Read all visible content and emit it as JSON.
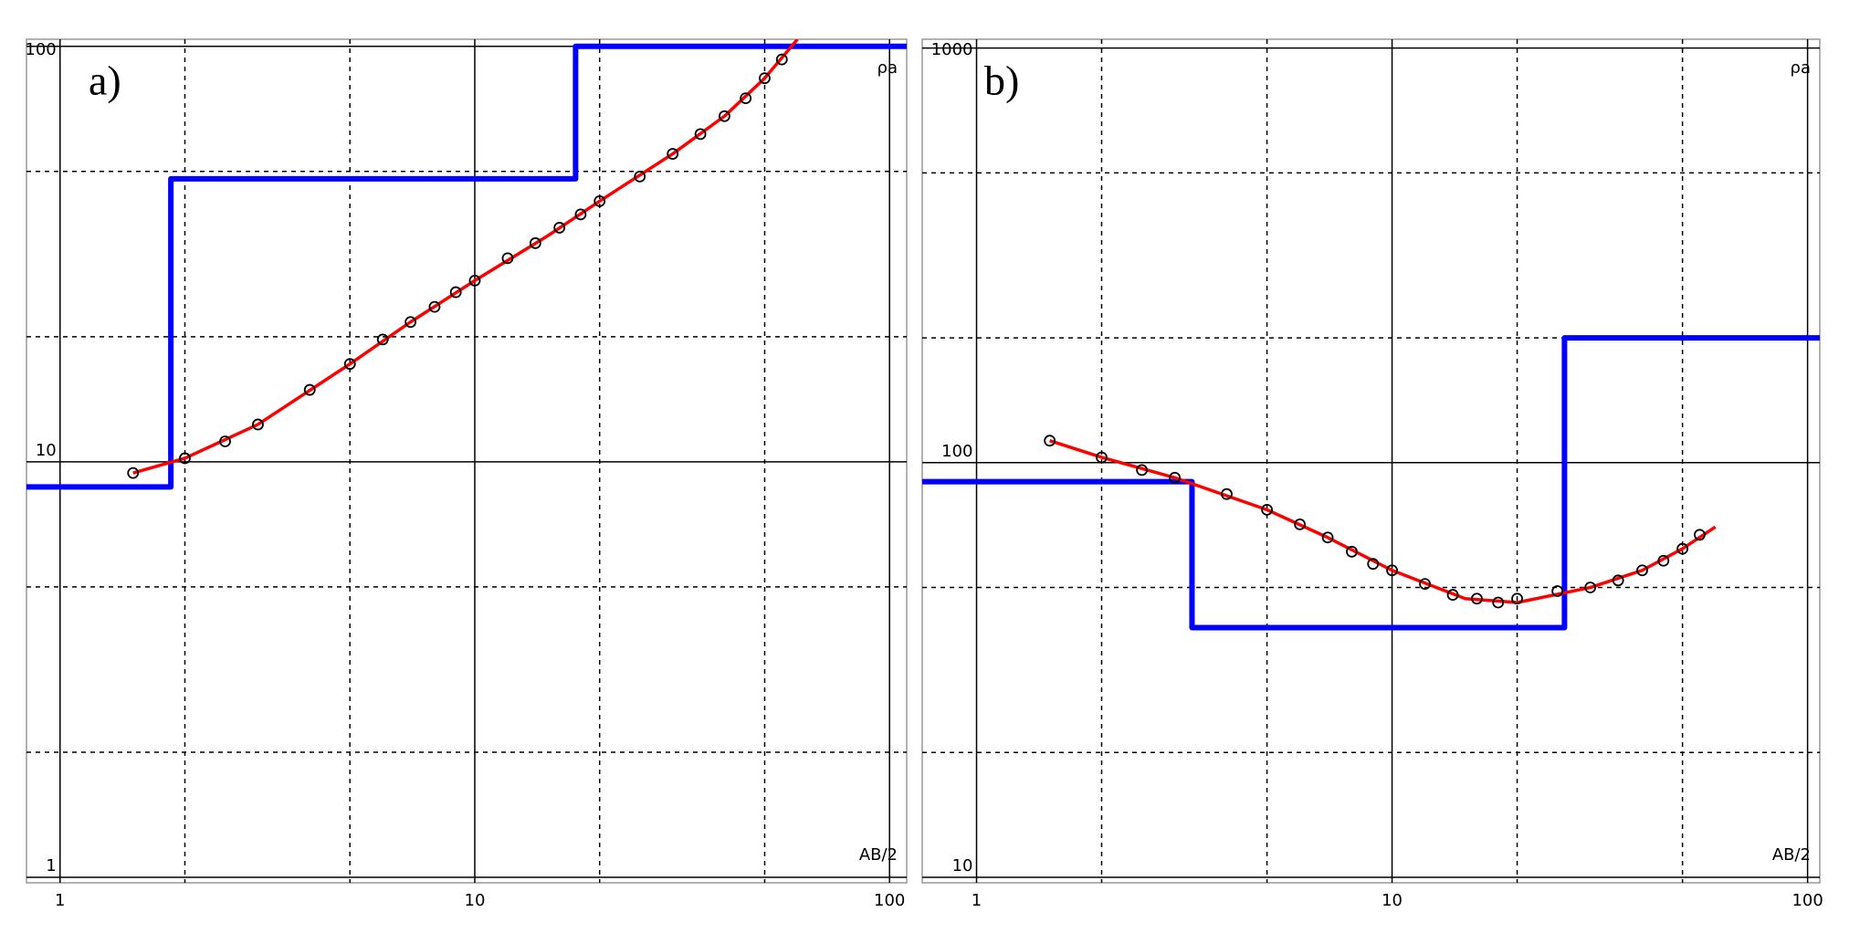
{
  "chart_data": [
    {
      "type": "line",
      "panel_label": "a)",
      "x_label": "AB/2",
      "y_label": "ρa",
      "xlog": true,
      "ylog": true,
      "xlim": [
        0.83,
        110
      ],
      "ylim": [
        0.97,
        104
      ],
      "xticks": [
        1,
        10,
        100
      ],
      "yticks": [
        1,
        10,
        100
      ],
      "minor_xticks": [
        2,
        5,
        20,
        50
      ],
      "minor_yticks": [
        2,
        5,
        20,
        50
      ],
      "grid": true,
      "series": [
        {
          "kind": "step",
          "color": "#0000ff",
          "x": [
            0.83,
            1.85,
            1.85,
            17.5,
            17.5,
            110
          ],
          "values": [
            8.7,
            8.7,
            48,
            48,
            100,
            100
          ]
        },
        {
          "kind": "curve",
          "color": "#ff0000",
          "x": [
            1.5,
            2,
            3,
            5,
            7,
            10,
            15,
            20,
            30,
            40,
            50,
            60
          ],
          "values": [
            9.4,
            10.2,
            12.3,
            17.2,
            21.7,
            27.3,
            35,
            42.4,
            55.1,
            67.9,
            83.8,
            104
          ]
        },
        {
          "kind": "points",
          "color": "#000000",
          "x": [
            1.5,
            2,
            2.5,
            3,
            4,
            5,
            6,
            7,
            8,
            9,
            10,
            12,
            14,
            16,
            18,
            20,
            25,
            30,
            35,
            40,
            45,
            50,
            55
          ],
          "values": [
            9.4,
            10.2,
            11.2,
            12.3,
            14.9,
            17.2,
            19.7,
            21.7,
            23.6,
            25.6,
            27.3,
            30.9,
            33.6,
            36.6,
            39.4,
            42.4,
            48.6,
            55.1,
            61.5,
            67.9,
            75,
            83.8,
            93
          ]
        }
      ]
    },
    {
      "type": "line",
      "panel_label": "b)",
      "x_label": "AB/2",
      "y_label": "ρa",
      "xlog": true,
      "ylog": true,
      "xlim": [
        0.74,
        107
      ],
      "ylim": [
        9.7,
        1050
      ],
      "xticks": [
        1,
        10,
        100
      ],
      "yticks": [
        10,
        100,
        1000
      ],
      "minor_xticks": [
        2,
        5,
        20,
        50
      ],
      "minor_yticks": [
        20,
        50,
        200,
        500
      ],
      "grid": true,
      "series": [
        {
          "kind": "step",
          "color": "#0000ff",
          "x": [
            0.74,
            3.3,
            3.3,
            26,
            26,
            107
          ],
          "values": [
            90,
            90,
            40,
            40,
            200,
            200
          ]
        },
        {
          "kind": "curve",
          "color": "#ff0000",
          "x": [
            1.5,
            2,
            3,
            5,
            7,
            10,
            15,
            20,
            30,
            40,
            50,
            60
          ],
          "values": [
            113,
            103,
            92,
            77,
            66,
            55,
            47,
            46,
            50,
            55,
            62,
            70
          ]
        },
        {
          "kind": "points",
          "color": "#000000",
          "x": [
            1.5,
            2,
            2.5,
            3,
            4,
            5,
            6,
            7,
            8,
            9,
            10,
            12,
            14,
            16,
            18,
            20,
            25,
            30,
            35,
            40,
            45,
            50,
            55
          ],
          "values": [
            113,
            103,
            96,
            92,
            84,
            77,
            71,
            66,
            61,
            57,
            55,
            51,
            48,
            47,
            46,
            47,
            49,
            50,
            52,
            55,
            58,
            62,
            67
          ]
        }
      ]
    }
  ]
}
